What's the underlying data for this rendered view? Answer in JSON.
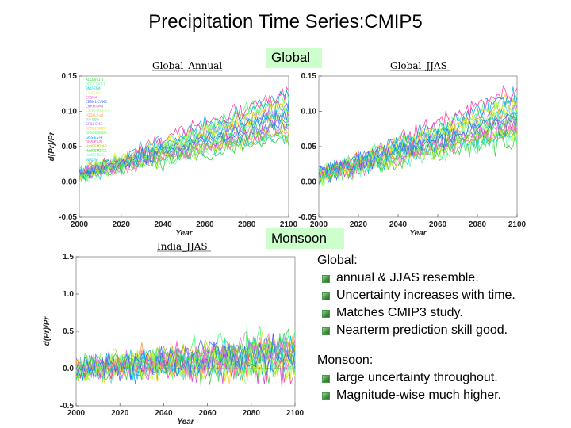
{
  "slide": {
    "title": "Precipitation Time Series:CMIP5",
    "tag_global": "Global",
    "tag_monsoon": "Monsoon"
  },
  "notes": {
    "global_heading": "Global:",
    "global_points": [
      "annual & JJAS resemble.",
      "Uncertainty increases with time.",
      "Matches CMIP3 study.",
      "Nearterm prediction skill good."
    ],
    "monsoon_heading": "Monsoon:",
    "monsoon_points": [
      "large uncertainty  throughout.",
      "Magnitude-wise much higher."
    ]
  },
  "colors": {
    "palette": [
      "#33cc33",
      "#66ff99",
      "#00cccc",
      "#ccff33",
      "#ff66cc",
      "#3366ff",
      "#cc33cc",
      "#99ff66",
      "#ff9933",
      "#66cccc",
      "#9966ff",
      "#ffcc00",
      "#33ff66",
      "#0099ff",
      "#ff3399",
      "#99cc00"
    ],
    "zero_line": "#555555",
    "note_bullet": "#4a9a4a"
  },
  "chart_data": [
    {
      "id": "global_annual",
      "type": "line",
      "title": "Global_Annual",
      "xlabel": "Year",
      "ylabel": "d(Pr)/Pr",
      "xlim": [
        2000,
        2100
      ],
      "ylim": [
        -0.05,
        0.15
      ],
      "xticks": [
        2000,
        2020,
        2040,
        2060,
        2080,
        2100
      ],
      "yticks": [
        -0.05,
        0.0,
        0.05,
        0.1,
        0.15
      ],
      "ytick_labels": [
        "-0.05",
        "0.00",
        "0.05",
        "0.10",
        "0.15"
      ],
      "series_count": 22,
      "model_slopes_per_century": [
        0.05,
        0.055,
        0.06,
        0.065,
        0.07,
        0.075,
        0.08,
        0.085,
        0.09,
        0.095,
        0.1,
        0.105,
        0.11,
        0.115,
        0.12,
        0.06,
        0.07,
        0.08,
        0.09,
        0.1,
        0.065,
        0.085
      ],
      "model_start": 0.01,
      "model_noise": 0.012,
      "legend": [
        "ACCESS1-0",
        "BCC-CSM1-1",
        "BNU-ESM",
        "CanESM2",
        "CCSM4",
        "CESM1-CAM5",
        "CNRM-CM5",
        "CSIRO-Mk3-6-0",
        "FGOALS-g2",
        "FIO-ESM",
        "GFDL-CM3",
        "GFDL-ESM2G",
        "GFDL-ESM2M",
        "GISS-E2-H",
        "GISS-E2-R",
        "HadGEM2-AO",
        "HadGEM2-CC",
        "HadGEM2-ES",
        "INMCM4",
        "IPSL-CM5A-LR",
        "MIROC5",
        "MRI-CGCM3"
      ]
    },
    {
      "id": "global_jjas",
      "type": "line",
      "title": "Global_JJAS",
      "xlabel": "Year",
      "ylabel": "",
      "xlim": [
        2000,
        2100
      ],
      "ylim": [
        -0.05,
        0.15
      ],
      "xticks": [
        2000,
        2020,
        2040,
        2060,
        2080,
        2100
      ],
      "yticks": [
        -0.05,
        0.0,
        0.05,
        0.1,
        0.15
      ],
      "ytick_labels": [
        "-0.05",
        "0.00",
        "0.05",
        "0.10",
        "0.15"
      ],
      "series_count": 22,
      "model_slopes_per_century": [
        0.05,
        0.055,
        0.06,
        0.065,
        0.07,
        0.075,
        0.08,
        0.085,
        0.09,
        0.095,
        0.1,
        0.105,
        0.11,
        0.115,
        0.12,
        0.06,
        0.07,
        0.08,
        0.09,
        0.1,
        0.065,
        0.085
      ],
      "model_start": 0.01,
      "model_noise": 0.014
    },
    {
      "id": "india_jjas",
      "type": "line",
      "title": "India_JJAS",
      "xlabel": "Year",
      "ylabel": "d(Pr)/Pr",
      "xlim": [
        2000,
        2100
      ],
      "ylim": [
        -0.5,
        1.5
      ],
      "xticks": [
        2000,
        2020,
        2040,
        2060,
        2080,
        2100
      ],
      "yticks": [
        -0.5,
        0.0,
        0.5,
        1.0,
        1.5
      ],
      "ytick_labels": [
        "-0.5",
        "0.0",
        "0.5",
        "1.0",
        "1.5"
      ],
      "series_count": 22,
      "model_slopes_per_century": [
        0.05,
        0.1,
        0.15,
        0.2,
        0.25,
        0.3,
        0.1,
        0.2,
        0.3,
        0.15,
        0.25,
        0.05,
        0.35,
        0.2,
        0.1,
        0.3,
        0.25,
        0.15,
        0.2,
        0.1,
        0.3,
        0.2
      ],
      "model_start": 0.0,
      "model_noise": 0.16
    }
  ]
}
